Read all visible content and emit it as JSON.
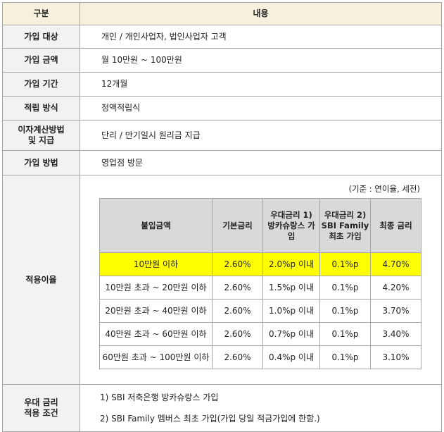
{
  "table": {
    "header": [
      "구분",
      "내용"
    ],
    "rows": [
      [
        "가입 대상",
        "개인 / 개인사업자, 법인사업자 고객"
      ],
      [
        "가입 금액",
        "월 10만원 ~ 100만원"
      ],
      [
        "가입 기간",
        "12개월"
      ],
      [
        "적립 방식",
        "정액적립식"
      ],
      [
        "이자계산방법\n및 지급",
        "단리 / 만기일시 원리금 지급"
      ],
      [
        "가입 방법",
        "영업점 방문"
      ]
    ],
    "rate": {
      "label": "적용이율",
      "note": "(기준 : 연이율, 세전)",
      "header": [
        "불입금액",
        "기본금리",
        "우대금리 1)\n방카슈랑스 가\n입",
        "우대금리 2)\nSBI Family\n최초 가입",
        "최종 금리"
      ],
      "rows": [
        [
          "10만원 이하",
          "2.60%",
          "2.0%p 이내",
          "0.1%p",
          "4.70%"
        ],
        [
          "10만원 초과 ~ 20만원 이하",
          "2.60%",
          "1.5%p 이내",
          "0.1%p",
          "4.20%"
        ],
        [
          "20만원 초과 ~ 40만원 이하",
          "2.60%",
          "1.0%p 이내",
          "0.1%p",
          "3.70%"
        ],
        [
          "40만원 초과 ~ 60만원 이하",
          "2.60%",
          "0.7%p 이내",
          "0.1%p",
          "3.40%"
        ],
        [
          "60만원 초과 ~ 100만원 이하",
          "2.60%",
          "0.4%p 이내",
          "0.1%p",
          "3.10%"
        ]
      ]
    },
    "preferential": {
      "label": "우대 금리\n적용 조건",
      "items": [
        "1)  SBI 저축은행 방카슈랑스 가입",
        "2)  SBI Family 멤버스 최초 가입(가입 당일 적금가입에 한함.)"
      ]
    }
  }
}
